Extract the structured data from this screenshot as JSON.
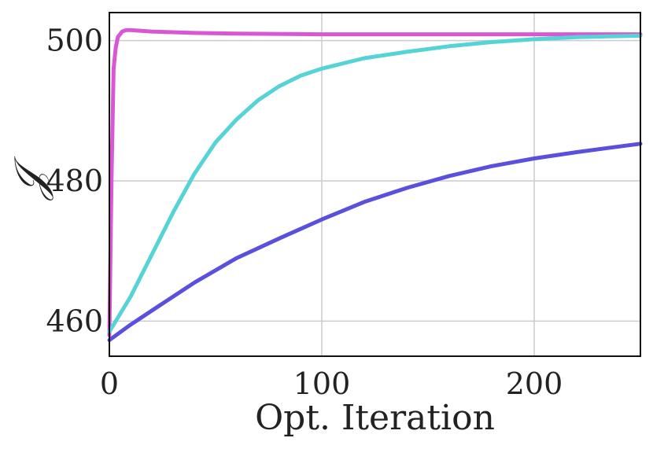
{
  "chart_data": {
    "type": "line",
    "xlabel": "Opt. Iteration",
    "ylabel": "𝒥",
    "xlim": [
      0,
      250
    ],
    "ylim": [
      455,
      504
    ],
    "xticks": [
      0,
      100,
      200
    ],
    "yticks": [
      460,
      480,
      500
    ],
    "grid": true,
    "series": [
      {
        "color": "#d957d4",
        "x": [
          0,
          1,
          2,
          3,
          4,
          6,
          8,
          10,
          15,
          20,
          40,
          60,
          100,
          150,
          200,
          250
        ],
        "y": [
          458,
          480,
          496,
          499,
          500.5,
          501.3,
          501.5,
          501.5,
          501.4,
          501.3,
          501.1,
          501.0,
          500.9,
          500.9,
          500.9,
          500.9
        ]
      },
      {
        "color": "#55d3d6",
        "x": [
          0,
          5,
          10,
          20,
          30,
          40,
          50,
          60,
          70,
          80,
          90,
          100,
          120,
          140,
          160,
          180,
          200,
          220,
          250
        ],
        "y": [
          458.5,
          461,
          463.5,
          469.5,
          475.5,
          481,
          485.5,
          488.8,
          491.5,
          493.5,
          495,
          496,
          497.5,
          498.4,
          499.2,
          499.8,
          500.2,
          500.5,
          500.7
        ]
      },
      {
        "color": "#5b4fde",
        "x": [
          0,
          10,
          20,
          40,
          60,
          80,
          100,
          120,
          140,
          160,
          180,
          200,
          220,
          240,
          250
        ],
        "y": [
          457.3,
          459.5,
          461.5,
          465.5,
          469,
          471.8,
          474.5,
          477,
          479,
          480.7,
          482.1,
          483.2,
          484.1,
          484.9,
          485.3
        ]
      }
    ]
  }
}
